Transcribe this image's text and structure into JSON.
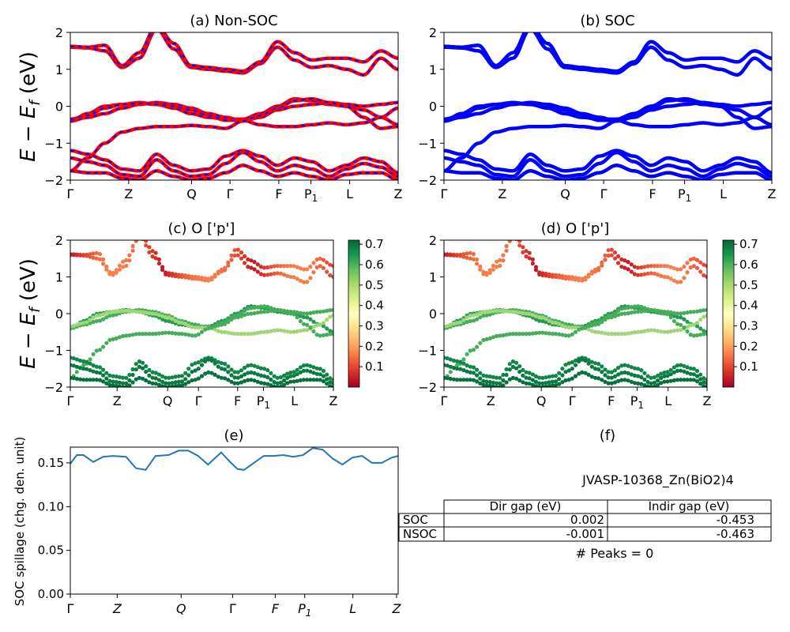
{
  "ylabel_band": "E − E",
  "ylabel_band_sub": "f",
  "ylabel_band_unit": " (eV)",
  "kpath_labels": [
    "Γ",
    "Z",
    "Q",
    "Γ",
    "F",
    "P",
    "L",
    "Z"
  ],
  "p1_subscript": "1",
  "y_ticks": [
    "2",
    "1",
    "0",
    "−1",
    "−2"
  ],
  "colorbar_ticks": [
    "0.7",
    "0.6",
    "0.5",
    "0.4",
    "0.3",
    "0.2",
    "0.1"
  ],
  "panels": {
    "a": {
      "title": "(a) Non-SOC"
    },
    "b": {
      "title": "(b) SOC"
    },
    "c": {
      "title": "(c)  O ['p']"
    },
    "d": {
      "title": "(d) O ['p']"
    },
    "e": {
      "title": "(e)",
      "ylabel": "SOC spillage (chg. den. unit)",
      "yticks": [
        "0.15",
        "0.10",
        "0.05",
        "0.00"
      ]
    },
    "f": {
      "title": "(f)"
    }
  },
  "table": {
    "title": "JVASP-10368_Zn(BiO2)4",
    "headers": [
      "Dir gap (eV)",
      "Indir gap (eV)"
    ],
    "rows": [
      {
        "label": "SOC",
        "dir": "0.002",
        "indir": "-0.453"
      },
      {
        "label": "NSOC",
        "dir": "-0.001",
        "indir": "-0.463"
      }
    ],
    "footer": "# Peaks = 0"
  },
  "colors": {
    "nonsoc_line": "#ff0000",
    "nonsoc_dash": "#0000ff",
    "soc_line": "#0000ff",
    "spillage_line": "#1f77b4"
  },
  "chart_data": [
    {
      "type": "line",
      "title": "(a) Non-SOC",
      "ylabel": "E − Ef (eV)",
      "ylim": [
        -2,
        2
      ],
      "xticks": [
        "Γ",
        "Z",
        "Q",
        "Γ",
        "F",
        "P1",
        "L",
        "Z"
      ],
      "series_approx_bands": [
        [
          1.6,
          1.55,
          1.45,
          1.0,
          1.3,
          2.0,
          1.5,
          1.05,
          1.0,
          0.95,
          0.9,
          1.1,
          1.55,
          1.2,
          1.0,
          1.05,
          1.0,
          0.85,
          1.3,
          1.0
        ],
        [
          -0.4,
          -0.2,
          0.0,
          0.05,
          0.1,
          0.05,
          -0.05,
          -0.2,
          -0.3,
          -0.35,
          -0.35,
          -0.2,
          0.0,
          0.2,
          0.15,
          0.05,
          0.0,
          -0.1,
          -0.3,
          -0.5
        ],
        [
          -0.4,
          -0.3,
          -0.2,
          -0.05,
          0.05,
          0.1,
          0.05,
          -0.05,
          -0.2,
          -0.3,
          -0.4,
          -0.3,
          -0.1,
          0.0,
          0.05,
          0.1,
          0.05,
          0.0,
          0.05,
          0.1
        ],
        [
          -1.75,
          -1.4,
          -1.0,
          -0.7,
          -0.6,
          -0.55,
          -0.55,
          -0.5,
          -0.55,
          -0.6,
          -0.4,
          -0.55,
          -0.55,
          -0.55,
          -0.5,
          -0.45,
          -0.4,
          -0.6,
          -0.85,
          -0.55
        ]
      ]
    },
    {
      "type": "line",
      "title": "(b) SOC",
      "ylim": [
        -2,
        2
      ]
    },
    {
      "type": "scatter",
      "title": "(c)  O ['p']",
      "ylim": [
        -2,
        2
      ],
      "colorbar": [
        0.0,
        0.7
      ]
    },
    {
      "type": "scatter",
      "title": "(d) O ['p']",
      "ylim": [
        -2,
        2
      ],
      "colorbar": [
        0.0,
        0.7
      ]
    },
    {
      "type": "line",
      "title": "(e)",
      "ylabel": "SOC spillage (chg. den. unit)",
      "ylim": [
        0,
        0.168
      ],
      "xticks": [
        "Γ",
        "Z",
        "Q",
        "Γ",
        "F",
        "P1",
        "L",
        "Z"
      ],
      "x": [
        0,
        0.02,
        0.04,
        0.07,
        0.1,
        0.13,
        0.17,
        0.2,
        0.23,
        0.26,
        0.3,
        0.33,
        0.36,
        0.39,
        0.42,
        0.46,
        0.49,
        0.51,
        0.53,
        0.56,
        0.59,
        0.62,
        0.65,
        0.68,
        0.71,
        0.74,
        0.77,
        0.8,
        0.83,
        0.86,
        0.89,
        0.92,
        0.95,
        0.98,
        1.0
      ],
      "y": [
        0.149,
        0.159,
        0.159,
        0.151,
        0.157,
        0.158,
        0.157,
        0.144,
        0.142,
        0.158,
        0.159,
        0.164,
        0.164,
        0.158,
        0.148,
        0.162,
        0.15,
        0.143,
        0.142,
        0.15,
        0.158,
        0.158,
        0.159,
        0.157,
        0.159,
        0.167,
        0.165,
        0.155,
        0.148,
        0.156,
        0.158,
        0.15,
        0.15,
        0.156,
        0.158
      ]
    }
  ]
}
